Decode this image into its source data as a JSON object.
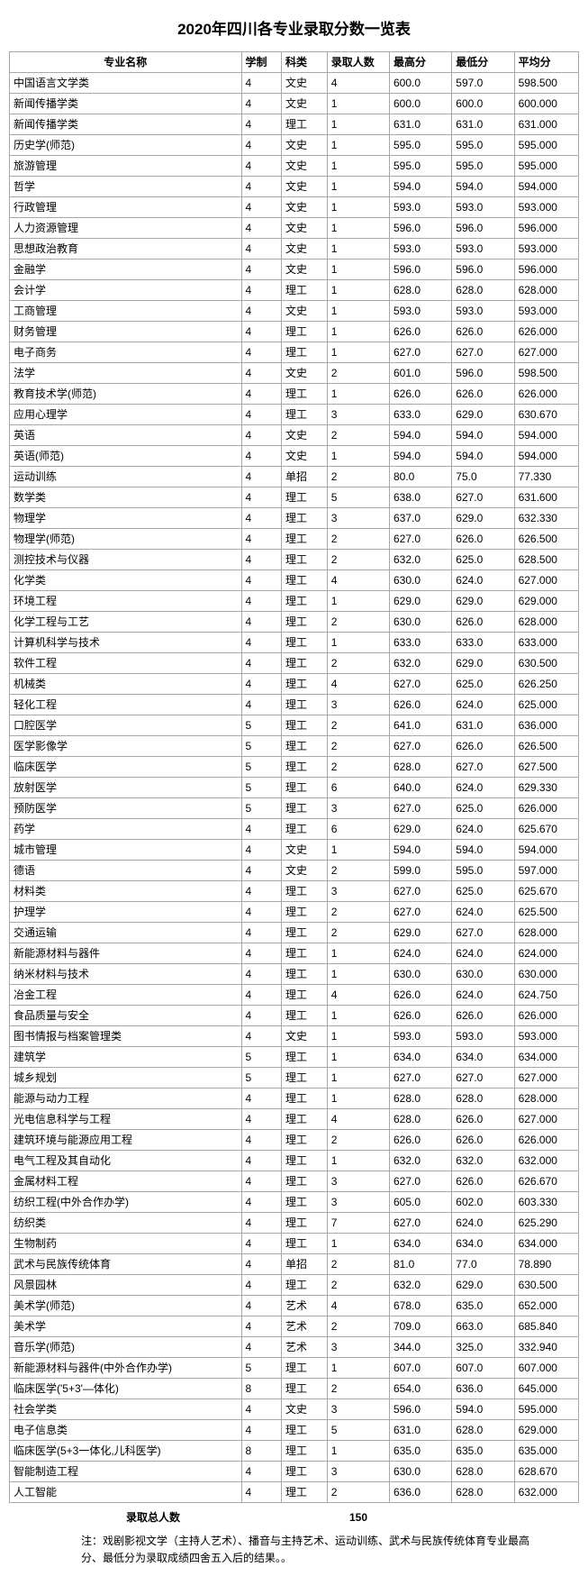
{
  "title": "2020年四川各专业录取分数一览表",
  "columns": [
    "专业名称",
    "学制",
    "科类",
    "录取人数",
    "最高分",
    "最低分",
    "平均分"
  ],
  "total_label": "录取总人数",
  "total_value": "150",
  "note": "注：戏剧影视文学（主持人艺术）、播音与主持艺术、运动训练、武术与民族传统体育专业最高分、最低分为录取成绩四舍五入后的结果。。",
  "style": {
    "background": "#ffffff",
    "border_color": "#a8a8a8",
    "text_color": "#000000",
    "title_fontsize": 17,
    "body_fontsize": 12
  },
  "rows": [
    [
      "中国语言文学类",
      "4",
      "文史",
      "4",
      "600.0",
      "597.0",
      "598.500"
    ],
    [
      "新闻传播学类",
      "4",
      "文史",
      "1",
      "600.0",
      "600.0",
      "600.000"
    ],
    [
      "新闻传播学类",
      "4",
      "理工",
      "1",
      "631.0",
      "631.0",
      "631.000"
    ],
    [
      "历史学(师范)",
      "4",
      "文史",
      "1",
      "595.0",
      "595.0",
      "595.000"
    ],
    [
      "旅游管理",
      "4",
      "文史",
      "1",
      "595.0",
      "595.0",
      "595.000"
    ],
    [
      "哲学",
      "4",
      "文史",
      "1",
      "594.0",
      "594.0",
      "594.000"
    ],
    [
      "行政管理",
      "4",
      "文史",
      "1",
      "593.0",
      "593.0",
      "593.000"
    ],
    [
      "人力资源管理",
      "4",
      "文史",
      "1",
      "596.0",
      "596.0",
      "596.000"
    ],
    [
      "思想政治教育",
      "4",
      "文史",
      "1",
      "593.0",
      "593.0",
      "593.000"
    ],
    [
      "金融学",
      "4",
      "文史",
      "1",
      "596.0",
      "596.0",
      "596.000"
    ],
    [
      "会计学",
      "4",
      "理工",
      "1",
      "628.0",
      "628.0",
      "628.000"
    ],
    [
      "工商管理",
      "4",
      "文史",
      "1",
      "593.0",
      "593.0",
      "593.000"
    ],
    [
      "财务管理",
      "4",
      "理工",
      "1",
      "626.0",
      "626.0",
      "626.000"
    ],
    [
      "电子商务",
      "4",
      "理工",
      "1",
      "627.0",
      "627.0",
      "627.000"
    ],
    [
      "法学",
      "4",
      "文史",
      "2",
      "601.0",
      "596.0",
      "598.500"
    ],
    [
      "教育技术学(师范)",
      "4",
      "理工",
      "1",
      "626.0",
      "626.0",
      "626.000"
    ],
    [
      "应用心理学",
      "4",
      "理工",
      "3",
      "633.0",
      "629.0",
      "630.670"
    ],
    [
      "英语",
      "4",
      "文史",
      "2",
      "594.0",
      "594.0",
      "594.000"
    ],
    [
      "英语(师范)",
      "4",
      "文史",
      "1",
      "594.0",
      "594.0",
      "594.000"
    ],
    [
      "运动训练",
      "4",
      "单招",
      "2",
      "80.0",
      "75.0",
      "77.330"
    ],
    [
      "数学类",
      "4",
      "理工",
      "5",
      "638.0",
      "627.0",
      "631.600"
    ],
    [
      "物理学",
      "4",
      "理工",
      "3",
      "637.0",
      "629.0",
      "632.330"
    ],
    [
      "物理学(师范)",
      "4",
      "理工",
      "2",
      "627.0",
      "626.0",
      "626.500"
    ],
    [
      "测控技术与仪器",
      "4",
      "理工",
      "2",
      "632.0",
      "625.0",
      "628.500"
    ],
    [
      "化学类",
      "4",
      "理工",
      "4",
      "630.0",
      "624.0",
      "627.000"
    ],
    [
      "环境工程",
      "4",
      "理工",
      "1",
      "629.0",
      "629.0",
      "629.000"
    ],
    [
      "化学工程与工艺",
      "4",
      "理工",
      "2",
      "630.0",
      "626.0",
      "628.000"
    ],
    [
      "计算机科学与技术",
      "4",
      "理工",
      "1",
      "633.0",
      "633.0",
      "633.000"
    ],
    [
      "软件工程",
      "4",
      "理工",
      "2",
      "632.0",
      "629.0",
      "630.500"
    ],
    [
      "机械类",
      "4",
      "理工",
      "4",
      "627.0",
      "625.0",
      "626.250"
    ],
    [
      "轻化工程",
      "4",
      "理工",
      "3",
      "626.0",
      "624.0",
      "625.000"
    ],
    [
      "口腔医学",
      "5",
      "理工",
      "2",
      "641.0",
      "631.0",
      "636.000"
    ],
    [
      "医学影像学",
      "5",
      "理工",
      "2",
      "627.0",
      "626.0",
      "626.500"
    ],
    [
      "临床医学",
      "5",
      "理工",
      "2",
      "628.0",
      "627.0",
      "627.500"
    ],
    [
      "放射医学",
      "5",
      "理工",
      "6",
      "640.0",
      "624.0",
      "629.330"
    ],
    [
      "预防医学",
      "5",
      "理工",
      "3",
      "627.0",
      "625.0",
      "626.000"
    ],
    [
      "药学",
      "4",
      "理工",
      "6",
      "629.0",
      "624.0",
      "625.670"
    ],
    [
      "城市管理",
      "4",
      "文史",
      "1",
      "594.0",
      "594.0",
      "594.000"
    ],
    [
      "德语",
      "4",
      "文史",
      "2",
      "599.0",
      "595.0",
      "597.000"
    ],
    [
      "材料类",
      "4",
      "理工",
      "3",
      "627.0",
      "625.0",
      "625.670"
    ],
    [
      "护理学",
      "4",
      "理工",
      "2",
      "627.0",
      "624.0",
      "625.500"
    ],
    [
      "交通运输",
      "4",
      "理工",
      "2",
      "629.0",
      "627.0",
      "628.000"
    ],
    [
      "新能源材料与器件",
      "4",
      "理工",
      "1",
      "624.0",
      "624.0",
      "624.000"
    ],
    [
      "纳米材料与技术",
      "4",
      "理工",
      "1",
      "630.0",
      "630.0",
      "630.000"
    ],
    [
      "冶金工程",
      "4",
      "理工",
      "4",
      "626.0",
      "624.0",
      "624.750"
    ],
    [
      "食品质量与安全",
      "4",
      "理工",
      "1",
      "626.0",
      "626.0",
      "626.000"
    ],
    [
      "图书情报与档案管理类",
      "4",
      "文史",
      "1",
      "593.0",
      "593.0",
      "593.000"
    ],
    [
      "建筑学",
      "5",
      "理工",
      "1",
      "634.0",
      "634.0",
      "634.000"
    ],
    [
      "城乡规划",
      "5",
      "理工",
      "1",
      "627.0",
      "627.0",
      "627.000"
    ],
    [
      "能源与动力工程",
      "4",
      "理工",
      "1",
      "628.0",
      "628.0",
      "628.000"
    ],
    [
      "光电信息科学与工程",
      "4",
      "理工",
      "4",
      "628.0",
      "626.0",
      "627.000"
    ],
    [
      "建筑环境与能源应用工程",
      "4",
      "理工",
      "2",
      "626.0",
      "626.0",
      "626.000"
    ],
    [
      "电气工程及其自动化",
      "4",
      "理工",
      "1",
      "632.0",
      "632.0",
      "632.000"
    ],
    [
      "金属材料工程",
      "4",
      "理工",
      "3",
      "627.0",
      "626.0",
      "626.670"
    ],
    [
      "纺织工程(中外合作办学)",
      "4",
      "理工",
      "3",
      "605.0",
      "602.0",
      "603.330"
    ],
    [
      "纺织类",
      "4",
      "理工",
      "7",
      "627.0",
      "624.0",
      "625.290"
    ],
    [
      "生物制药",
      "4",
      "理工",
      "1",
      "634.0",
      "634.0",
      "634.000"
    ],
    [
      "武术与民族传统体育",
      "4",
      "单招",
      "2",
      "81.0",
      "77.0",
      "78.890"
    ],
    [
      "风景园林",
      "4",
      "理工",
      "2",
      "632.0",
      "629.0",
      "630.500"
    ],
    [
      "美术学(师范)",
      "4",
      "艺术",
      "4",
      "678.0",
      "635.0",
      "652.000"
    ],
    [
      "美术学",
      "4",
      "艺术",
      "2",
      "709.0",
      "663.0",
      "685.840"
    ],
    [
      "音乐学(师范)",
      "4",
      "艺术",
      "3",
      "344.0",
      "325.0",
      "332.940"
    ],
    [
      "新能源材料与器件(中外合作办学)",
      "5",
      "理工",
      "1",
      "607.0",
      "607.0",
      "607.000"
    ],
    [
      "临床医学('5+3'—体化)",
      "8",
      "理工",
      "2",
      "654.0",
      "636.0",
      "645.000"
    ],
    [
      "社会学类",
      "4",
      "文史",
      "3",
      "596.0",
      "594.0",
      "595.000"
    ],
    [
      "电子信息类",
      "4",
      "理工",
      "5",
      "631.0",
      "628.0",
      "629.000"
    ],
    [
      "临床医学(5+3一体化,儿科医学)",
      "8",
      "理工",
      "1",
      "635.0",
      "635.0",
      "635.000"
    ],
    [
      "智能制造工程",
      "4",
      "理工",
      "3",
      "630.0",
      "628.0",
      "628.670"
    ],
    [
      "人工智能",
      "4",
      "理工",
      "2",
      "636.0",
      "628.0",
      "632.000"
    ]
  ]
}
